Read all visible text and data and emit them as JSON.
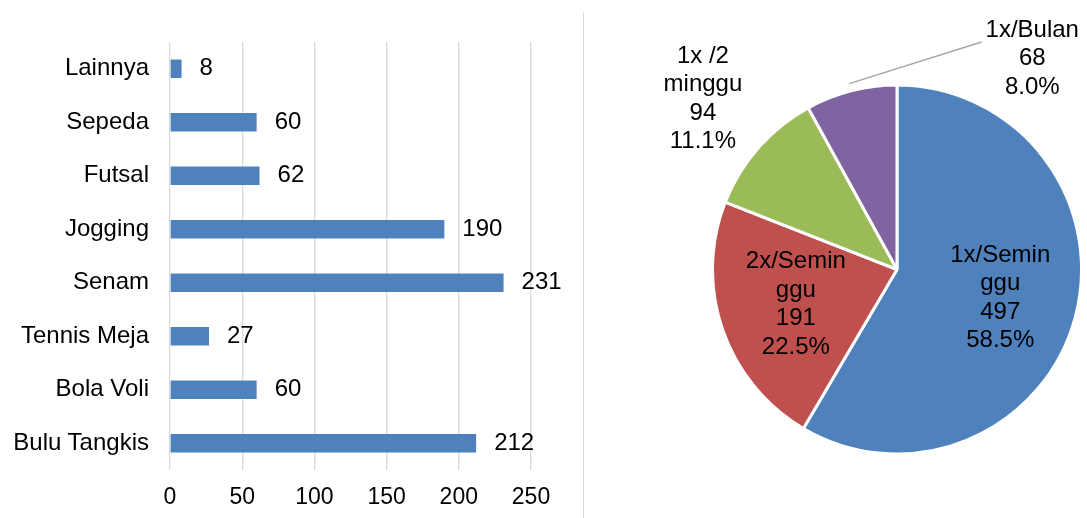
{
  "chart_data": [
    {
      "type": "bar",
      "orientation": "horizontal",
      "categories": [
        "Lainnya",
        "Sepeda",
        "Futsal",
        "Jogging",
        "Senam",
        "Tennis Meja",
        "Bola Voli",
        "Bulu Tangkis"
      ],
      "values": [
        8,
        60,
        62,
        190,
        231,
        27,
        60,
        212
      ],
      "color": "#4f81bd",
      "xlim": [
        0,
        250
      ],
      "xticks": [
        0,
        50,
        100,
        150,
        200,
        250
      ],
      "grid": "x",
      "data_labels": true
    },
    {
      "type": "pie",
      "categories": [
        "1x/Seminggu",
        "2x/Seminggu",
        "1x /2 minggu",
        "1x/Bulan"
      ],
      "values": [
        497,
        191,
        94,
        68
      ],
      "colors": [
        "#4f81bd",
        "#c0504d",
        "#9bbb59",
        "#8064a2"
      ],
      "value_labels": [
        "497\n58.5%",
        "191\n22.5%",
        "94\n11.1%",
        "68\n8.0%"
      ]
    }
  ]
}
